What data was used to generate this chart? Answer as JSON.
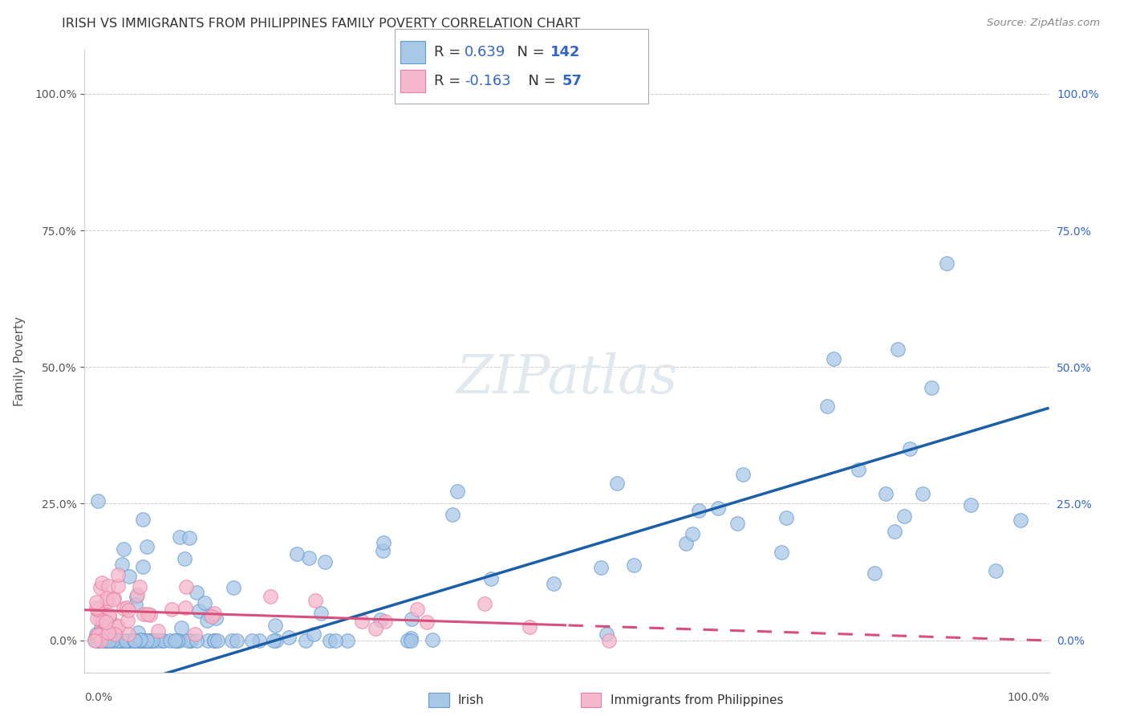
{
  "title": "IRISH VS IMMIGRANTS FROM PHILIPPINES FAMILY POVERTY CORRELATION CHART",
  "source": "Source: ZipAtlas.com",
  "ylabel": "Family Poverty",
  "legend_irish_r": "0.639",
  "legend_irish_n": "142",
  "legend_phil_r": "-0.163",
  "legend_phil_n": "57",
  "legend_label_irish": "Irish",
  "legend_label_phil": "Immigrants from Philippines",
  "irish_color": "#a8c8e8",
  "irish_edge_color": "#6699cc",
  "phil_color": "#f5b8cc",
  "phil_edge_color": "#e87fa0",
  "irish_line_color": "#1a5fa8",
  "phil_line_color": "#d94f7a",
  "r_n_color": "#3366cc",
  "watermark_color": "#e0e8f0",
  "background_color": "#ffffff",
  "grid_color": "#cccccc",
  "tick_color_left": "#555555",
  "tick_color_right": "#3366cc",
  "title_color": "#333333",
  "source_color": "#888888"
}
